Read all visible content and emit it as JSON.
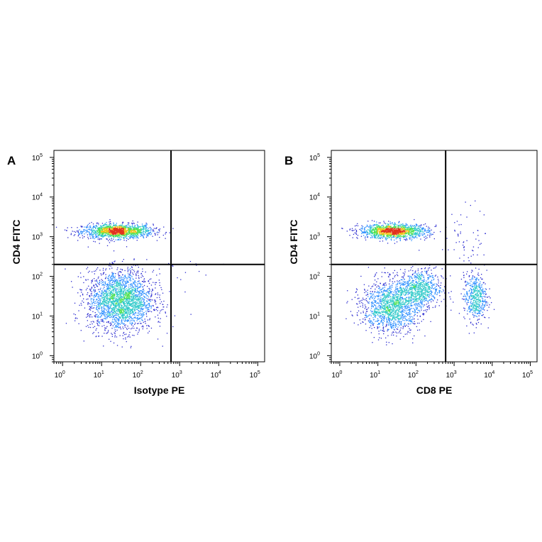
{
  "chart_data": [
    {
      "type": "scatter",
      "panel": "A",
      "xlabel": "Isotype PE",
      "ylabel": "CD4 FITC",
      "x_scale": "log",
      "y_scale": "log",
      "xlim": [
        0.6,
        150000
      ],
      "ylim": [
        0.7,
        150000
      ],
      "x_ticks": [
        {
          "base": "10",
          "exp": "0"
        },
        {
          "base": "10",
          "exp": "1"
        },
        {
          "base": "10",
          "exp": "2"
        },
        {
          "base": "10",
          "exp": "3"
        },
        {
          "base": "10",
          "exp": "4"
        },
        {
          "base": "10",
          "exp": "5"
        }
      ],
      "y_ticks": [
        {
          "base": "10",
          "exp": "0"
        },
        {
          "base": "10",
          "exp": "1"
        },
        {
          "base": "10",
          "exp": "2"
        },
        {
          "base": "10",
          "exp": "3"
        },
        {
          "base": "10",
          "exp": "4"
        },
        {
          "base": "10",
          "exp": "5"
        }
      ],
      "quadrant_gate": {
        "x": 600,
        "y": 200
      },
      "grid": false,
      "populations": [
        {
          "center": [
            25,
            1400
          ],
          "spread_decades": [
            0.45,
            0.09
          ],
          "events": 1400
        },
        {
          "center": [
            30,
            25
          ],
          "spread_decades": [
            0.42,
            0.38
          ],
          "events": 2300
        },
        {
          "center": [
            1500,
            110
          ],
          "spread_decades": [
            0.6,
            0.2
          ],
          "events": 18
        }
      ]
    },
    {
      "type": "scatter",
      "panel": "B",
      "xlabel": "CD8 PE",
      "ylabel": "CD4 FITC",
      "x_scale": "log",
      "y_scale": "log",
      "xlim": [
        0.6,
        150000
      ],
      "ylim": [
        0.7,
        150000
      ],
      "x_ticks": [
        {
          "base": "10",
          "exp": "0"
        },
        {
          "base": "10",
          "exp": "1"
        },
        {
          "base": "10",
          "exp": "2"
        },
        {
          "base": "10",
          "exp": "3"
        },
        {
          "base": "10",
          "exp": "4"
        },
        {
          "base": "10",
          "exp": "5"
        }
      ],
      "y_ticks": [
        {
          "base": "10",
          "exp": "0"
        },
        {
          "base": "10",
          "exp": "1"
        },
        {
          "base": "10",
          "exp": "2"
        },
        {
          "base": "10",
          "exp": "3"
        },
        {
          "base": "10",
          "exp": "4"
        },
        {
          "base": "10",
          "exp": "5"
        }
      ],
      "quadrant_gate": {
        "x": 600,
        "y": 200
      },
      "grid": false,
      "populations": [
        {
          "center": [
            25,
            1400
          ],
          "spread_decades": [
            0.45,
            0.09
          ],
          "events": 1300
        },
        {
          "center": [
            22,
            18
          ],
          "spread_decades": [
            0.38,
            0.33
          ],
          "events": 1400
        },
        {
          "center": [
            130,
            50
          ],
          "spread_decades": [
            0.28,
            0.25
          ],
          "events": 700
        },
        {
          "center": [
            3500,
            30
          ],
          "spread_decades": [
            0.15,
            0.3
          ],
          "events": 500
        },
        {
          "center": [
            2200,
            800
          ],
          "spread_decades": [
            0.3,
            0.45
          ],
          "events": 60
        }
      ]
    }
  ],
  "colors": {
    "density_scale": [
      "#2a2acf",
      "#2f8fff",
      "#2ec9c9",
      "#4fe24f",
      "#f2c21a",
      "#e2331d"
    ],
    "gate_line": "#000000",
    "frame": "#000000"
  }
}
